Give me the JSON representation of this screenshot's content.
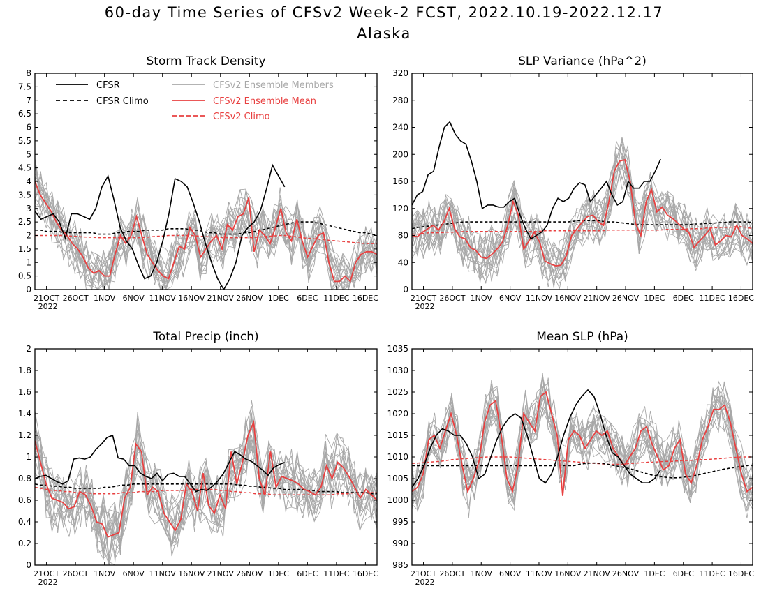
{
  "header": {
    "title": "60-day Time Series of CFSv2 Week-2 FCST, 2022.10.19-2022.12.17",
    "subtitle": "Alaska"
  },
  "colors": {
    "cfsr": "#000000",
    "members": "#a8a8a8",
    "mean": "#e84040"
  },
  "legend": {
    "cfsr": "CFSR",
    "cfsr_climo": "CFSR Climo",
    "members": "CFSv2 Ensemble Members",
    "mean": "CFSv2 Ensemble Mean",
    "cfsv2_climo": "CFSv2 Climo"
  },
  "x_ticks": [
    "21OCT",
    "26OCT",
    "1NOV",
    "6NOV",
    "11NOV",
    "16NOV",
    "21NOV",
    "26NOV",
    "1DEC",
    "6DEC",
    "11DEC",
    "16DEC"
  ],
  "x_year": "2022",
  "chart_data": [
    {
      "type": "line",
      "title": "Storm Track Density",
      "ylim": [
        0,
        8
      ],
      "yticks": [
        "0",
        "0.5",
        "1",
        "1.5",
        "2",
        "2.5",
        "3",
        "3.5",
        "4",
        "4.5",
        "5",
        "5.5",
        "6",
        "6.5",
        "7",
        "7.5",
        "8"
      ],
      "legend_position": "top-left",
      "cfsr": [
        2.9,
        2.6,
        2.7,
        2.8,
        2.5,
        1.9,
        2.8,
        2.8,
        2.7,
        2.6,
        3.0,
        3.8,
        4.2,
        3.3,
        2.3,
        1.8,
        1.5,
        0.9,
        0.4,
        0.5,
        1.0,
        1.8,
        2.8,
        4.1,
        4.0,
        3.8,
        3.2,
        2.5,
        1.7,
        1.0,
        0.4,
        0.0,
        0.4,
        1.0,
        2.0,
        2.3,
        2.5,
        2.9,
        3.7,
        4.6,
        4.2,
        3.8
      ],
      "cfsr_climo": [
        2.2,
        2.2,
        2.15,
        2.15,
        2.15,
        2.1,
        2.1,
        2.1,
        2.1,
        2.1,
        2.1,
        2.05,
        2.05,
        2.05,
        2.1,
        2.1,
        2.15,
        2.15,
        2.15,
        2.2,
        2.2,
        2.2,
        2.2,
        2.25,
        2.25,
        2.25,
        2.25,
        2.2,
        2.2,
        2.15,
        2.1,
        2.1,
        2.05,
        2.05,
        2.05,
        2.05,
        2.1,
        2.1,
        2.15,
        2.2,
        2.25,
        2.3,
        2.35,
        2.4,
        2.45,
        2.5,
        2.5,
        2.5,
        2.5,
        2.45,
        2.4,
        2.35,
        2.3,
        2.25,
        2.2,
        2.15,
        2.1,
        2.1,
        2.05,
        2.0
      ],
      "mean": [
        4.0,
        3.5,
        3.2,
        2.9,
        2.5,
        2.2,
        2.0,
        1.7,
        1.5,
        1.2,
        0.8,
        0.6,
        0.7,
        0.5,
        0.5,
        1.3,
        2.0,
        1.7,
        2.0,
        2.7,
        2.0,
        1.3,
        1.0,
        0.7,
        0.5,
        0.4,
        1.0,
        1.6,
        1.5,
        2.3,
        2.0,
        1.2,
        1.5,
        1.8,
        2.0,
        1.5,
        2.4,
        2.2,
        2.7,
        2.8,
        3.4,
        1.4,
        2.2,
        2.0,
        1.7,
        2.3,
        3.0,
        2.1,
        1.8,
        2.6,
        1.8,
        1.2,
        1.6,
        2.0,
        2.1,
        1.0,
        0.3,
        0.3,
        0.5,
        0.3,
        1.0,
        1.3,
        1.4,
        1.4,
        1.3
      ],
      "cfsv2_climo": [
        2.0,
        2.0,
        2.0,
        2.0,
        2.0,
        2.0,
        1.98,
        1.97,
        1.95,
        1.94,
        1.93,
        1.92,
        1.92,
        1.92,
        1.92,
        1.92,
        1.92,
        1.92,
        1.92,
        1.93,
        1.95,
        1.97,
        1.98,
        2.0,
        2.0,
        2.0,
        2.0,
        2.0,
        1.98,
        1.96,
        1.95,
        1.94,
        1.93,
        1.92,
        1.92,
        1.92,
        1.92,
        1.92,
        1.93,
        1.95,
        1.97,
        1.98,
        2.0,
        2.0,
        1.98,
        1.95,
        1.92,
        1.9,
        1.88,
        1.86,
        1.84,
        1.82,
        1.8,
        1.78,
        1.76,
        1.74,
        1.72,
        1.7,
        1.7,
        1.7
      ]
    },
    {
      "type": "line",
      "title": "SLP Variance (hPa^2)",
      "ylim": [
        0,
        320
      ],
      "yticks": [
        "0",
        "40",
        "80",
        "120",
        "160",
        "200",
        "240",
        "280",
        "320"
      ],
      "cfsr": [
        125,
        140,
        145,
        170,
        175,
        210,
        240,
        248,
        230,
        220,
        215,
        190,
        160,
        120,
        125,
        125,
        122,
        122,
        130,
        135,
        110,
        90,
        75,
        80,
        85,
        95,
        120,
        135,
        130,
        135,
        150,
        158,
        155,
        130,
        140,
        150,
        160,
        140,
        125,
        130,
        160,
        150,
        150,
        160,
        160,
        175,
        193
      ],
      "cfsr_climo": [
        90,
        92,
        93,
        94,
        95,
        96,
        97,
        98,
        99,
        100,
        100,
        100,
        100,
        100,
        100,
        100,
        100,
        100,
        100,
        100,
        100,
        100,
        100,
        100,
        100,
        100,
        100,
        100,
        101,
        102,
        102,
        102,
        102,
        101,
        100,
        100,
        99,
        98,
        97,
        96,
        96,
        96,
        96,
        96,
        96,
        96,
        96,
        96,
        96,
        97,
        97,
        98,
        98,
        99,
        99,
        100,
        100,
        100,
        100,
        99
      ],
      "mean": [
        80,
        78,
        85,
        90,
        95,
        88,
        100,
        120,
        90,
        78,
        75,
        62,
        58,
        48,
        46,
        52,
        60,
        70,
        95,
        130,
        110,
        60,
        72,
        85,
        70,
        42,
        38,
        35,
        36,
        50,
        80,
        90,
        100,
        108,
        110,
        100,
        95,
        130,
        175,
        190,
        192,
        160,
        98,
        80,
        130,
        148,
        115,
        122,
        110,
        105,
        98,
        90,
        85,
        62,
        72,
        80,
        90,
        66,
        72,
        80,
        78,
        95,
        80,
        75,
        68
      ],
      "cfsv2_climo": [
        82,
        82,
        83,
        84,
        84,
        84,
        85,
        85,
        85,
        86,
        86,
        86,
        86,
        86,
        86,
        86,
        86,
        86,
        86,
        86,
        86,
        86,
        86,
        87,
        87,
        87,
        87,
        87,
        87,
        87,
        87,
        87,
        87,
        87,
        88,
        88,
        88,
        88,
        88,
        88,
        88,
        88,
        88,
        88,
        89,
        89,
        89,
        89,
        90,
        90,
        90,
        91,
        91,
        92,
        92,
        92,
        93,
        93,
        92,
        90
      ]
    },
    {
      "type": "line",
      "title": "Total Precip (inch)",
      "ylim": [
        0,
        2
      ],
      "yticks": [
        "0",
        "0.2",
        "0.4",
        "0.6",
        "0.8",
        "1",
        "1.2",
        "1.4",
        "1.6",
        "1.8",
        "2"
      ],
      "cfsr": [
        0.8,
        0.82,
        0.83,
        0.8,
        0.77,
        0.75,
        0.78,
        0.98,
        0.99,
        0.98,
        1.0,
        1.07,
        1.12,
        1.18,
        1.2,
        0.99,
        0.98,
        0.92,
        0.92,
        0.85,
        0.82,
        0.8,
        0.85,
        0.78,
        0.84,
        0.85,
        0.82,
        0.82,
        0.75,
        0.68,
        0.7,
        0.69,
        0.73,
        0.78,
        0.85,
        0.95,
        1.05,
        1.02,
        0.98,
        0.96,
        0.92,
        0.88,
        0.83,
        0.9,
        0.93,
        0.95
      ],
      "cfsr_climo": [
        0.75,
        0.74,
        0.74,
        0.73,
        0.73,
        0.72,
        0.72,
        0.71,
        0.71,
        0.71,
        0.71,
        0.71,
        0.72,
        0.72,
        0.73,
        0.74,
        0.74,
        0.75,
        0.75,
        0.75,
        0.75,
        0.75,
        0.75,
        0.75,
        0.75,
        0.75,
        0.75,
        0.75,
        0.75,
        0.75,
        0.75,
        0.75,
        0.75,
        0.75,
        0.75,
        0.74,
        0.74,
        0.73,
        0.73,
        0.72,
        0.72,
        0.71,
        0.71,
        0.7,
        0.7,
        0.7,
        0.7,
        0.69,
        0.69,
        0.68,
        0.68,
        0.68,
        0.68,
        0.67,
        0.67,
        0.67,
        0.67,
        0.67,
        0.66,
        0.66
      ],
      "mean": [
        1.15,
        0.95,
        0.75,
        0.62,
        0.6,
        0.58,
        0.52,
        0.54,
        0.68,
        0.65,
        0.55,
        0.4,
        0.38,
        0.26,
        0.28,
        0.3,
        0.62,
        0.72,
        1.12,
        1.05,
        0.65,
        0.72,
        0.68,
        0.48,
        0.4,
        0.32,
        0.42,
        0.75,
        0.68,
        0.5,
        0.85,
        0.55,
        0.48,
        0.65,
        0.52,
        1.05,
        0.75,
        0.95,
        1.2,
        1.32,
        0.8,
        0.65,
        1.05,
        0.72,
        0.82,
        0.8,
        0.78,
        0.75,
        0.7,
        0.68,
        0.65,
        0.72,
        0.92,
        0.8,
        0.95,
        0.9,
        0.82,
        0.72,
        0.62,
        0.7,
        0.65,
        0.6
      ],
      "cfsv2_climo": [
        0.72,
        0.71,
        0.7,
        0.69,
        0.69,
        0.68,
        0.68,
        0.67,
        0.67,
        0.67,
        0.66,
        0.66,
        0.66,
        0.66,
        0.66,
        0.67,
        0.67,
        0.67,
        0.68,
        0.68,
        0.68,
        0.68,
        0.69,
        0.69,
        0.69,
        0.69,
        0.69,
        0.7,
        0.7,
        0.7,
        0.7,
        0.7,
        0.69,
        0.69,
        0.68,
        0.68,
        0.67,
        0.67,
        0.66,
        0.66,
        0.66,
        0.65,
        0.65,
        0.65,
        0.65,
        0.65,
        0.65,
        0.65,
        0.65,
        0.65,
        0.65,
        0.65,
        0.66,
        0.66,
        0.66,
        0.67,
        0.67,
        0.67,
        0.67,
        0.67
      ]
    },
    {
      "type": "line",
      "title": "Mean SLP (hPa)",
      "ylim": [
        985,
        1035
      ],
      "yticks": [
        "985",
        "990",
        "995",
        "1000",
        "1005",
        "1010",
        "1015",
        "1020",
        "1025",
        "1030",
        "1035"
      ],
      "cfsr": [
        1003,
        1005,
        1008,
        1012,
        1015,
        1016.5,
        1016,
        1015,
        1015,
        1013,
        1010,
        1005,
        1006,
        1010,
        1014,
        1017,
        1019,
        1020,
        1019,
        1015,
        1010,
        1005,
        1004,
        1006,
        1010,
        1015,
        1019,
        1022,
        1024,
        1025.5,
        1024,
        1020,
        1015,
        1011,
        1010,
        1008,
        1006,
        1005,
        1004,
        1004,
        1005,
        1007
      ],
      "cfsr_climo": [
        1008,
        1008,
        1008,
        1008,
        1008,
        1008,
        1008,
        1008,
        1008,
        1008,
        1008,
        1008,
        1008,
        1008,
        1008,
        1008,
        1008,
        1008,
        1008,
        1008,
        1008,
        1008,
        1008,
        1008,
        1008,
        1008,
        1008,
        1008,
        1008,
        1008.3,
        1008.5,
        1008.6,
        1008.6,
        1008.5,
        1008.3,
        1008,
        1007.8,
        1007.5,
        1007.2,
        1006.8,
        1006.4,
        1006,
        1005.7,
        1005.5,
        1005.3,
        1005.2,
        1005.2,
        1005.3,
        1005.5,
        1005.7,
        1006,
        1006.3,
        1006.6,
        1006.9,
        1007.2,
        1007.4,
        1007.6,
        1007.8,
        1008,
        1008.1
      ],
      "mean": [
        1002,
        1003,
        1006,
        1014,
        1015,
        1012,
        1016,
        1020,
        1015,
        1008,
        1002,
        1005,
        1009,
        1018,
        1022,
        1023,
        1015,
        1005,
        1002,
        1008,
        1020,
        1018,
        1016,
        1024,
        1025,
        1020,
        1015,
        1001,
        1014,
        1016,
        1015,
        1012,
        1014,
        1016,
        1015,
        1016,
        1012,
        1010,
        1008,
        1010,
        1012,
        1016,
        1017,
        1013,
        1010,
        1007,
        1008,
        1012,
        1014,
        1006,
        1004,
        1008,
        1014,
        1017,
        1021,
        1021,
        1022,
        1018,
        1012,
        1006,
        1002,
        1003
      ],
      "cfsv2_climo": [
        1008.5,
        1008.6,
        1008.7,
        1008.8,
        1008.9,
        1009,
        1009.2,
        1009.4,
        1009.5,
        1009.6,
        1009.7,
        1009.8,
        1009.9,
        1010,
        1010,
        1010,
        1010,
        1010,
        1009.9,
        1009.8,
        1009.7,
        1009.6,
        1009.5,
        1009.4,
        1009.3,
        1009.2,
        1009.1,
        1009,
        1008.9,
        1008.8,
        1008.7,
        1008.6,
        1008.5,
        1008.4,
        1008.3,
        1008.3,
        1008.3,
        1008.4,
        1008.5,
        1008.6,
        1008.7,
        1008.8,
        1008.8,
        1008.9,
        1009,
        1009,
        1009.1,
        1009.2,
        1009.2,
        1009.3,
        1009.4,
        1009.4,
        1009.5,
        1009.6,
        1009.7,
        1009.8,
        1009.9,
        1010,
        1010,
        1010
      ]
    }
  ]
}
